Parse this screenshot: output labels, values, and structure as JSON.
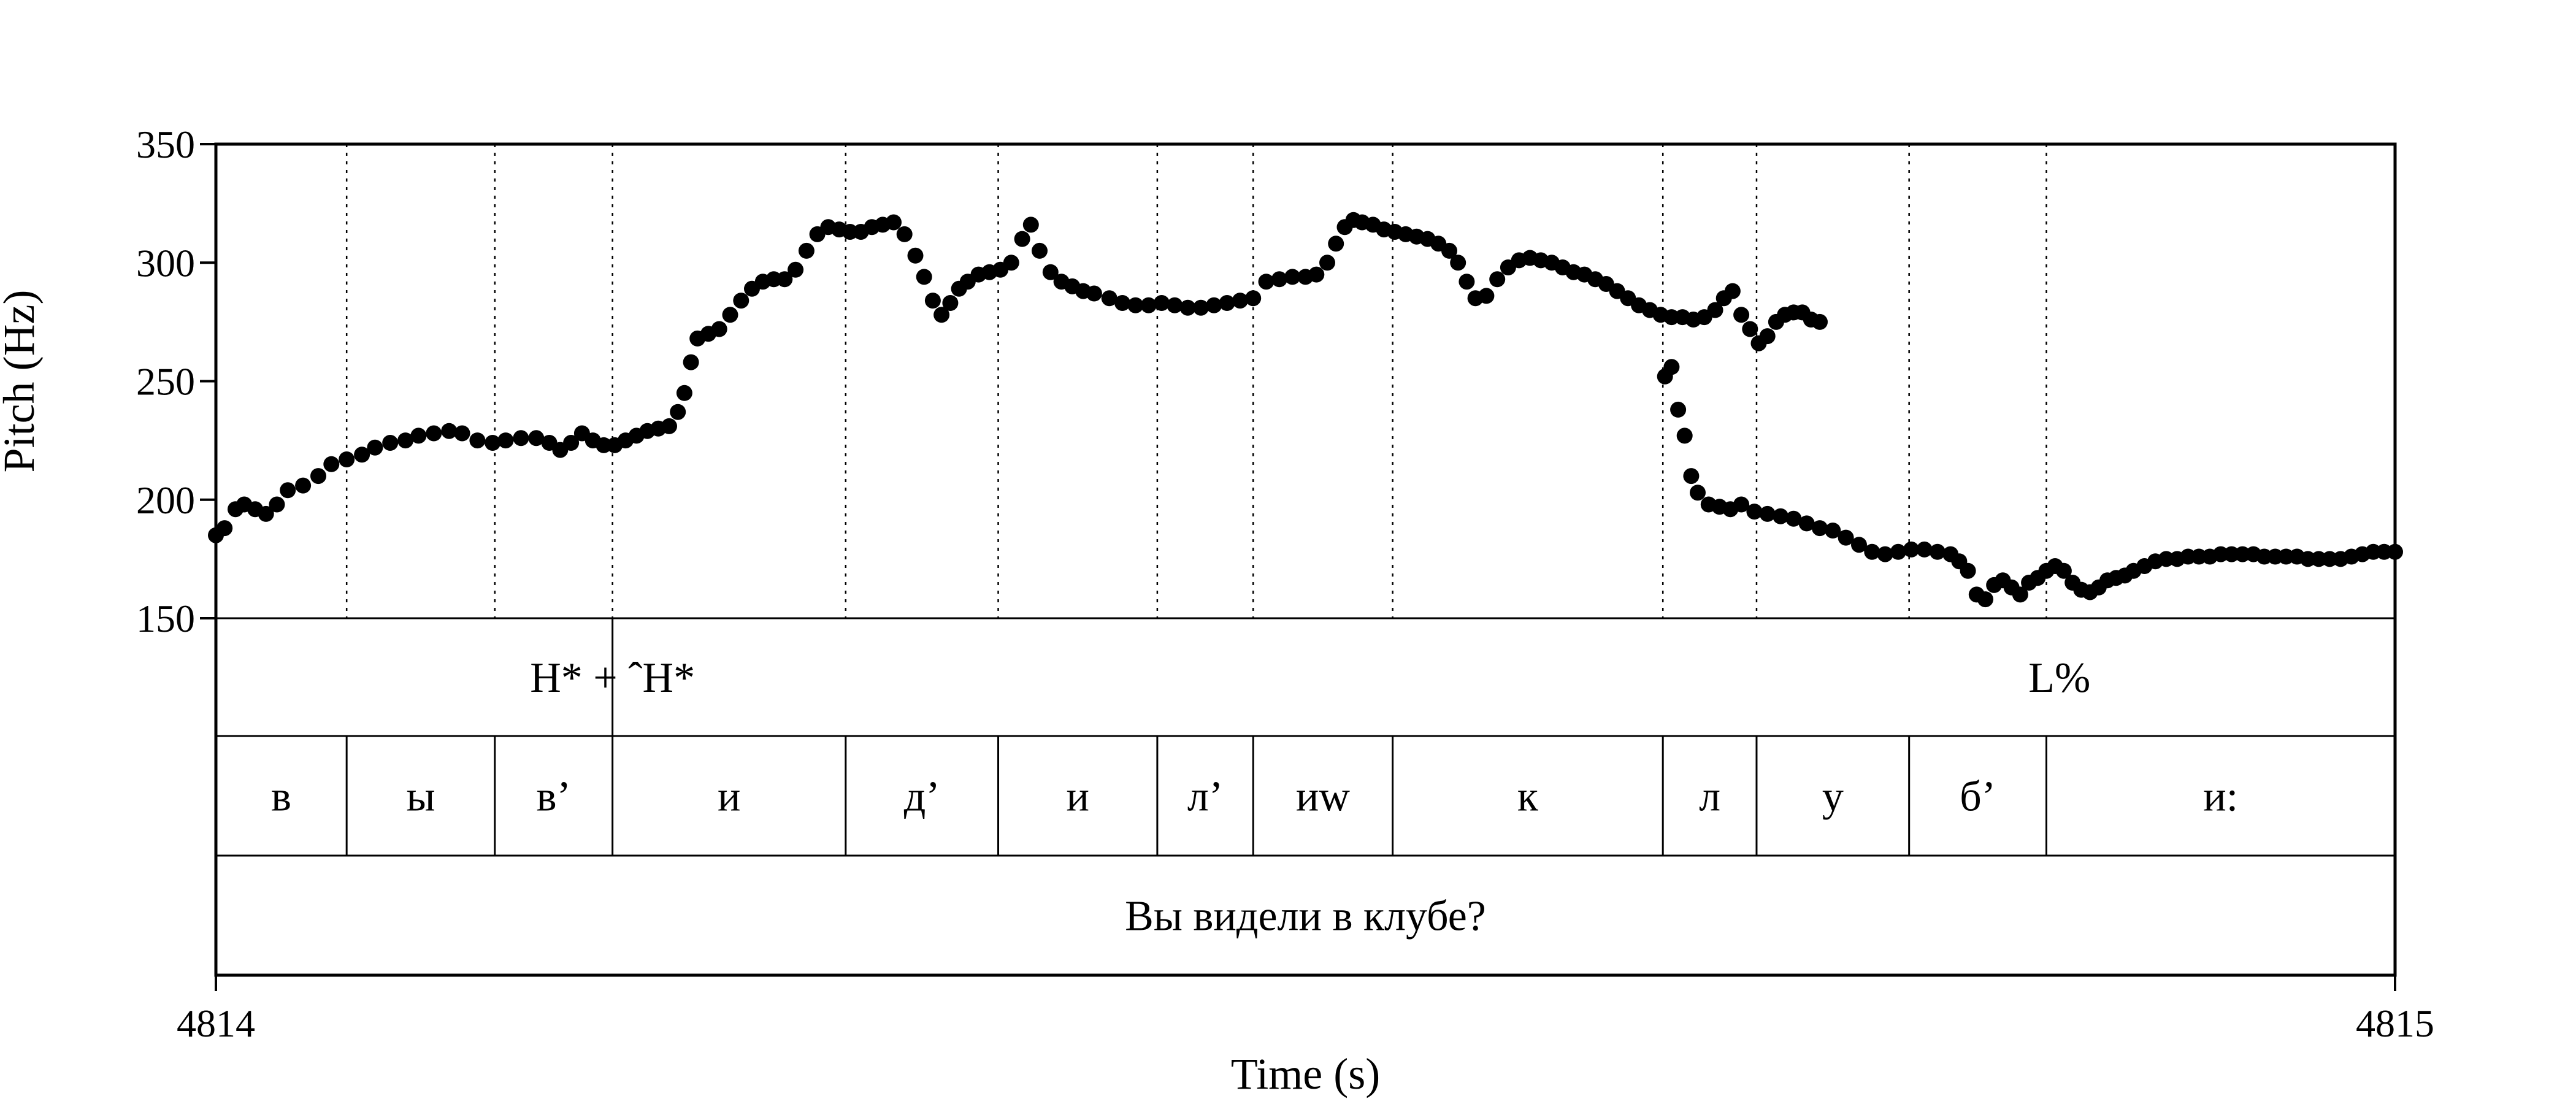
{
  "chart_data": {
    "type": "scatter",
    "xlabel": "Time (s)",
    "ylabel": "Pitch (Hz)",
    "xlim": [
      4814,
      4815
    ],
    "ylim": [
      150,
      350
    ],
    "x_ticks": [
      "4814",
      "4815"
    ],
    "y_ticks": [
      150,
      200,
      250,
      300,
      350
    ],
    "grid": false,
    "legend": "none",
    "point_color": "#000000",
    "pitch_track": [
      [
        0.0,
        185
      ],
      [
        0.004,
        188
      ],
      [
        0.009,
        196
      ],
      [
        0.013,
        198
      ],
      [
        0.018,
        196
      ],
      [
        0.023,
        194
      ],
      [
        0.028,
        198
      ],
      [
        0.033,
        204
      ],
      [
        0.04,
        206
      ],
      [
        0.047,
        210
      ],
      [
        0.053,
        215
      ],
      [
        0.06,
        217
      ],
      [
        0.067,
        219
      ],
      [
        0.073,
        222
      ],
      [
        0.08,
        224
      ],
      [
        0.087,
        225
      ],
      [
        0.093,
        227
      ],
      [
        0.1,
        228
      ],
      [
        0.107,
        229
      ],
      [
        0.113,
        228
      ],
      [
        0.12,
        225
      ],
      [
        0.127,
        224
      ],
      [
        0.133,
        225
      ],
      [
        0.14,
        226
      ],
      [
        0.147,
        226
      ],
      [
        0.153,
        224
      ],
      [
        0.158,
        221
      ],
      [
        0.163,
        224
      ],
      [
        0.168,
        228
      ],
      [
        0.173,
        225
      ],
      [
        0.178,
        223
      ],
      [
        0.183,
        223
      ],
      [
        0.188,
        225
      ],
      [
        0.193,
        227
      ],
      [
        0.198,
        229
      ],
      [
        0.203,
        230
      ],
      [
        0.208,
        231
      ],
      [
        0.212,
        237
      ],
      [
        0.215,
        245
      ],
      [
        0.218,
        258
      ],
      [
        0.221,
        268
      ],
      [
        0.226,
        270
      ],
      [
        0.231,
        272
      ],
      [
        0.236,
        278
      ],
      [
        0.241,
        284
      ],
      [
        0.246,
        289
      ],
      [
        0.251,
        292
      ],
      [
        0.256,
        293
      ],
      [
        0.261,
        293
      ],
      [
        0.266,
        297
      ],
      [
        0.271,
        305
      ],
      [
        0.276,
        312
      ],
      [
        0.281,
        315
      ],
      [
        0.286,
        314
      ],
      [
        0.291,
        313
      ],
      [
        0.296,
        313
      ],
      [
        0.301,
        315
      ],
      [
        0.306,
        316
      ],
      [
        0.311,
        317
      ],
      [
        0.316,
        312
      ],
      [
        0.321,
        303
      ],
      [
        0.325,
        294
      ],
      [
        0.329,
        284
      ],
      [
        0.333,
        278
      ],
      [
        0.337,
        283
      ],
      [
        0.341,
        289
      ],
      [
        0.345,
        292
      ],
      [
        0.35,
        295
      ],
      [
        0.355,
        296
      ],
      [
        0.36,
        297
      ],
      [
        0.365,
        300
      ],
      [
        0.37,
        310
      ],
      [
        0.374,
        316
      ],
      [
        0.378,
        305
      ],
      [
        0.383,
        296
      ],
      [
        0.388,
        292
      ],
      [
        0.393,
        290
      ],
      [
        0.398,
        288
      ],
      [
        0.403,
        287
      ],
      [
        0.41,
        285
      ],
      [
        0.416,
        283
      ],
      [
        0.422,
        282
      ],
      [
        0.428,
        282
      ],
      [
        0.434,
        283
      ],
      [
        0.44,
        282
      ],
      [
        0.446,
        281
      ],
      [
        0.452,
        281
      ],
      [
        0.458,
        282
      ],
      [
        0.464,
        283
      ],
      [
        0.47,
        284
      ],
      [
        0.476,
        285
      ],
      [
        0.482,
        292
      ],
      [
        0.488,
        293
      ],
      [
        0.494,
        294
      ],
      [
        0.5,
        294
      ],
      [
        0.505,
        295
      ],
      [
        0.51,
        300
      ],
      [
        0.514,
        308
      ],
      [
        0.518,
        315
      ],
      [
        0.522,
        318
      ],
      [
        0.526,
        317
      ],
      [
        0.531,
        316
      ],
      [
        0.536,
        314
      ],
      [
        0.541,
        313
      ],
      [
        0.546,
        312
      ],
      [
        0.551,
        311
      ],
      [
        0.556,
        310
      ],
      [
        0.561,
        308
      ],
      [
        0.566,
        305
      ],
      [
        0.57,
        300
      ],
      [
        0.574,
        292
      ],
      [
        0.578,
        285
      ],
      [
        0.583,
        286
      ],
      [
        0.588,
        293
      ],
      [
        0.593,
        298
      ],
      [
        0.598,
        301
      ],
      [
        0.603,
        302
      ],
      [
        0.608,
        301
      ],
      [
        0.613,
        300
      ],
      [
        0.618,
        298
      ],
      [
        0.623,
        296
      ],
      [
        0.628,
        295
      ],
      [
        0.633,
        293
      ],
      [
        0.638,
        291
      ],
      [
        0.643,
        288
      ],
      [
        0.648,
        285
      ],
      [
        0.653,
        282
      ],
      [
        0.658,
        280
      ],
      [
        0.663,
        278
      ],
      [
        0.668,
        277
      ],
      [
        0.673,
        277
      ],
      [
        0.678,
        276
      ],
      [
        0.683,
        277
      ],
      [
        0.688,
        280
      ],
      [
        0.692,
        285
      ],
      [
        0.696,
        288
      ],
      [
        0.7,
        278
      ],
      [
        0.704,
        272
      ],
      [
        0.708,
        266
      ],
      [
        0.712,
        269
      ],
      [
        0.716,
        275
      ],
      [
        0.72,
        278
      ],
      [
        0.724,
        279
      ],
      [
        0.728,
        279
      ],
      [
        0.732,
        276
      ],
      [
        0.736,
        275
      ],
      [
        0.665,
        252
      ],
      [
        0.668,
        256
      ],
      [
        0.671,
        238
      ],
      [
        0.674,
        227
      ],
      [
        0.677,
        210
      ],
      [
        0.68,
        203
      ],
      [
        0.685,
        198
      ],
      [
        0.69,
        197
      ],
      [
        0.695,
        196
      ],
      [
        0.7,
        198
      ],
      [
        0.706,
        195
      ],
      [
        0.712,
        194
      ],
      [
        0.718,
        193
      ],
      [
        0.724,
        192
      ],
      [
        0.73,
        190
      ],
      [
        0.736,
        188
      ],
      [
        0.742,
        187
      ],
      [
        0.748,
        184
      ],
      [
        0.754,
        181
      ],
      [
        0.76,
        178
      ],
      [
        0.766,
        177
      ],
      [
        0.772,
        178
      ],
      [
        0.778,
        179
      ],
      [
        0.784,
        179
      ],
      [
        0.79,
        178
      ],
      [
        0.796,
        177
      ],
      [
        0.8,
        174
      ],
      [
        0.804,
        170
      ],
      [
        0.808,
        160
      ],
      [
        0.812,
        158
      ],
      [
        0.816,
        164
      ],
      [
        0.82,
        166
      ],
      [
        0.824,
        163
      ],
      [
        0.828,
        160
      ],
      [
        0.832,
        165
      ],
      [
        0.836,
        167
      ],
      [
        0.84,
        170
      ],
      [
        0.844,
        172
      ],
      [
        0.848,
        170
      ],
      [
        0.852,
        165
      ],
      [
        0.856,
        162
      ],
      [
        0.86,
        161
      ],
      [
        0.864,
        163
      ],
      [
        0.868,
        166
      ],
      [
        0.872,
        167
      ],
      [
        0.876,
        168
      ],
      [
        0.88,
        170
      ],
      [
        0.885,
        172
      ],
      [
        0.89,
        174
      ],
      [
        0.895,
        175
      ],
      [
        0.9,
        175
      ],
      [
        0.905,
        176
      ],
      [
        0.91,
        176
      ],
      [
        0.915,
        176
      ],
      [
        0.92,
        177
      ],
      [
        0.925,
        177
      ],
      [
        0.93,
        177
      ],
      [
        0.935,
        177
      ],
      [
        0.94,
        176
      ],
      [
        0.945,
        176
      ],
      [
        0.95,
        176
      ],
      [
        0.955,
        176
      ],
      [
        0.96,
        175
      ],
      [
        0.965,
        175
      ],
      [
        0.97,
        175
      ],
      [
        0.975,
        175
      ],
      [
        0.98,
        176
      ],
      [
        0.985,
        177
      ],
      [
        0.99,
        178
      ],
      [
        0.995,
        178
      ],
      [
        1.0,
        178
      ]
    ],
    "tone_tier": {
      "boundary": 0.182,
      "labels": [
        {
          "text": "H* + ˆH*",
          "t": 0.182
        },
        {
          "text": "L%",
          "t": 0.846
        }
      ]
    },
    "segment_tier": {
      "boundaries": [
        0.0,
        0.06,
        0.128,
        0.182,
        0.289,
        0.359,
        0.432,
        0.476,
        0.54,
        0.664,
        0.707,
        0.777,
        0.84,
        1.0
      ],
      "labels": [
        "в",
        "ы",
        "в’",
        "и",
        "д’",
        "и",
        "л’",
        "иw",
        "к",
        "л",
        "у",
        "б’",
        "и:"
      ]
    },
    "utterance_tier": {
      "label": "Вы видели в клубе?"
    }
  }
}
